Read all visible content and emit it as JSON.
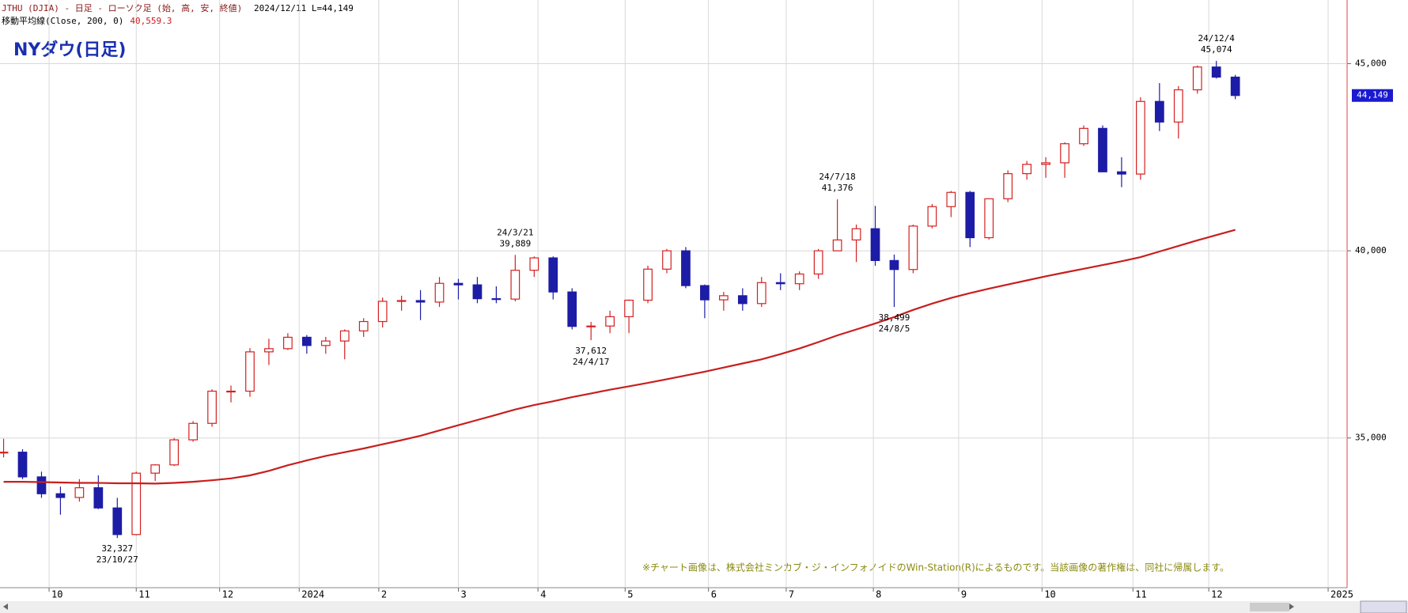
{
  "chart_data": {
    "type": "candlestick",
    "title": "NYダウ(日足)",
    "header": "JTHU (DJIA) - 日足 - ローソク足 (始, 高, 安, 終値)",
    "header_date": "2024/12/11 L=44,149",
    "last_value": 44149,
    "last_value_label": "44,149",
    "note": "※チャート画像は、株式会社ミンカブ・ジ・インフォノイドのWin-Station(R)によるものです。当該画像の著作権は、同社に帰属します。",
    "up_color": "#d42020",
    "down_color": "#1c1ca6",
    "categories": [
      null,
      null,
      null,
      null,
      null,
      null,
      null,
      null,
      null,
      null,
      null,
      null,
      null,
      null,
      null,
      null,
      null,
      null,
      null,
      null,
      null,
      null,
      null,
      null,
      null,
      null,
      null,
      null,
      null,
      null,
      null,
      null,
      null,
      null,
      null,
      null,
      null,
      null,
      null,
      null,
      null,
      null,
      null,
      null,
      null,
      null,
      null,
      null,
      null,
      null,
      null,
      null,
      null,
      null,
      null,
      null,
      null,
      null,
      null,
      null,
      null,
      null,
      null,
      null,
      null,
      null
    ],
    "open": [
      34600,
      34620,
      33960,
      33510,
      33410,
      33670,
      33130,
      32420,
      34060,
      34280,
      34950,
      35390,
      36250,
      36250,
      37300,
      37385,
      37690,
      37470,
      37590,
      37860,
      38110,
      38650,
      38670,
      38630,
      39130,
      39090,
      38720,
      38710,
      39480,
      39810,
      38900,
      37980,
      37990,
      38240,
      38680,
      39510,
      40000,
      39070,
      38690,
      38800,
      38590,
      39150,
      39120,
      39380,
      40000,
      40290,
      40590,
      39740,
      39500,
      40660,
      41180,
      41560,
      40350,
      41390,
      42060,
      42310,
      42350,
      42860,
      43270,
      42110,
      42050,
      43990,
      43440,
      44300,
      44910,
      44640
    ],
    "high": [
      34980,
      34700,
      34100,
      33700,
      33900,
      34000,
      33400,
      34100,
      34300,
      35000,
      35450,
      36300,
      36400,
      37400,
      37650,
      37800,
      37750,
      37700,
      37900,
      38200,
      38750,
      38800,
      38950,
      39300,
      39250,
      39300,
      39050,
      39889,
      39850,
      39850,
      39000,
      38100,
      38400,
      38700,
      39600,
      40050,
      40100,
      39100,
      38900,
      39000,
      39300,
      39400,
      39450,
      40050,
      41376,
      40700,
      41200,
      39900,
      40700,
      41250,
      41600,
      41600,
      41400,
      42150,
      42400,
      42500,
      42900,
      43350,
      43350,
      42500,
      44100,
      44480,
      44400,
      44950,
      45074,
      44700
    ],
    "low": [
      34480,
      33900,
      33400,
      32950,
      33300,
      33100,
      32327,
      32400,
      33850,
      34250,
      34900,
      35300,
      35950,
      36100,
      36950,
      37350,
      37250,
      37250,
      37100,
      37700,
      37950,
      38400,
      38150,
      38500,
      38700,
      38600,
      38600,
      38650,
      39300,
      38700,
      37900,
      37612,
      37800,
      37800,
      38600,
      39400,
      39000,
      38200,
      38400,
      38400,
      38500,
      38950,
      38950,
      39250,
      40000,
      39700,
      39600,
      38499,
      39400,
      40600,
      40900,
      40100,
      40300,
      41300,
      41900,
      41950,
      41950,
      42800,
      42100,
      41700,
      41900,
      43200,
      43000,
      44200,
      44600,
      44050
    ],
    "close": [
      34620,
      33960,
      33510,
      33410,
      33670,
      33130,
      32420,
      34060,
      34280,
      34950,
      35390,
      36250,
      36250,
      37300,
      37385,
      37690,
      37470,
      37590,
      37860,
      38110,
      38650,
      38670,
      38630,
      39130,
      39090,
      38720,
      38710,
      39480,
      39810,
      38900,
      37980,
      37990,
      38240,
      38680,
      39510,
      40000,
      39070,
      38690,
      38800,
      38590,
      39150,
      39120,
      39380,
      40000,
      40290,
      40590,
      39740,
      39500,
      40660,
      41180,
      41560,
      40350,
      41390,
      42060,
      42310,
      42350,
      42860,
      43270,
      42110,
      42050,
      43990,
      43440,
      44300,
      44910,
      44640,
      44149
    ],
    "series": [
      {
        "name": "移動平均線(Close, 200, 0)",
        "color": "#c81e1e",
        "last_label": "40,559.3",
        "values": [
          33830,
          33830,
          33820,
          33810,
          33800,
          33800,
          33790,
          33790,
          33780,
          33800,
          33830,
          33870,
          33920,
          34000,
          34120,
          34270,
          34400,
          34520,
          34620,
          34720,
          34830,
          34940,
          35060,
          35200,
          35340,
          35480,
          35620,
          35760,
          35880,
          35980,
          36090,
          36190,
          36290,
          36380,
          36470,
          36570,
          36670,
          36770,
          36880,
          36990,
          37100,
          37240,
          37390,
          37560,
          37740,
          37900,
          38060,
          38230,
          38420,
          38590,
          38740,
          38870,
          38990,
          39100,
          39210,
          39320,
          39420,
          39520,
          39620,
          39720,
          39830,
          39980,
          40130,
          40280,
          40420,
          40559.3
        ]
      }
    ],
    "annotations": [
      {
        "date": "23/10/27",
        "value": 32327,
        "label": "32,327"
      },
      {
        "date": "24/3/21",
        "value": 39889,
        "label": "39,889"
      },
      {
        "date": "24/4/17",
        "value": 37612,
        "label": "37,612"
      },
      {
        "date": "24/7/18",
        "value": 41376,
        "label": "41,376"
      },
      {
        "date": "24/8/5",
        "value": 38499,
        "label": "38,499"
      },
      {
        "date": "24/12/4",
        "value": 45074,
        "label": "45,074"
      }
    ],
    "xlim": [
      -0.19,
      70.9
    ],
    "xticks": [
      {
        "value": 2.4,
        "label": "10"
      },
      {
        "value": 7.0,
        "label": "11"
      },
      {
        "value": 11.4,
        "label": "12"
      },
      {
        "value": 15.6,
        "label": "2024"
      },
      {
        "value": 19.8,
        "label": "2"
      },
      {
        "value": 24.0,
        "label": "3"
      },
      {
        "value": 28.2,
        "label": "4"
      },
      {
        "value": 32.8,
        "label": "5"
      },
      {
        "value": 37.2,
        "label": "6"
      },
      {
        "value": 41.3,
        "label": "7"
      },
      {
        "value": 45.9,
        "label": "8"
      },
      {
        "value": 50.4,
        "label": "9"
      },
      {
        "value": 54.8,
        "label": "10"
      },
      {
        "value": 59.6,
        "label": "11"
      },
      {
        "value": 63.6,
        "label": "12"
      },
      {
        "value": 69.9,
        "label": "2025"
      }
    ],
    "ylim": [
      31000,
      46700
    ],
    "yticks": [
      {
        "value": 35000,
        "label": "35,000"
      },
      {
        "value": 40000,
        "label": "40,000"
      },
      {
        "value": 45000,
        "label": "45,000"
      }
    ],
    "grid": true
  }
}
